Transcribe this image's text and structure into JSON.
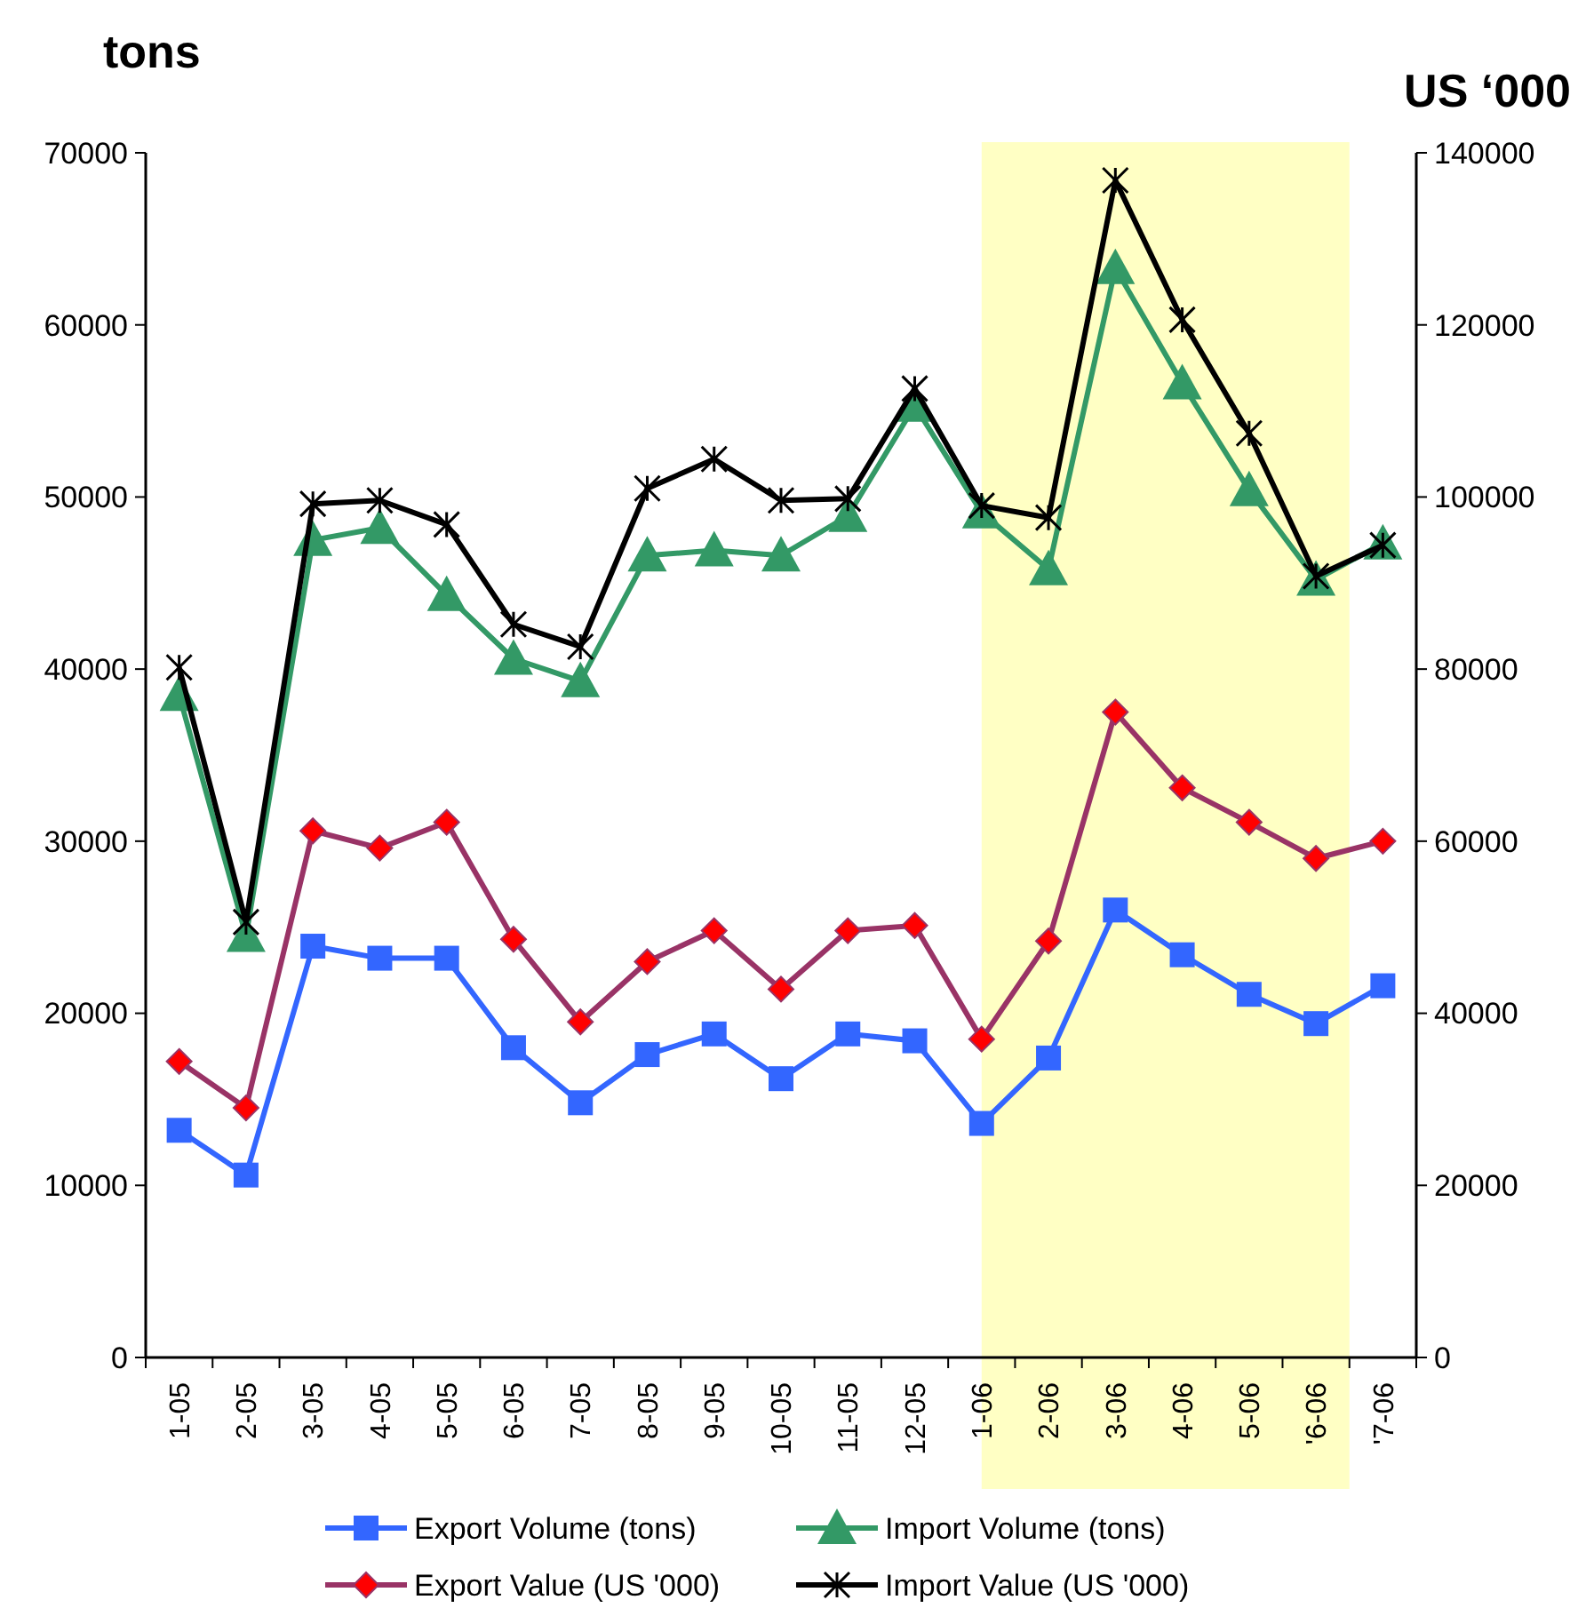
{
  "chart_data": {
    "type": "line",
    "ylabel": "tons",
    "y2label": "US ‘000",
    "categories": [
      "1-05",
      "2-05",
      "3-05",
      "4-05",
      "5-05",
      "6-05",
      "7-05",
      "8-05",
      "9-05",
      "10-05",
      "11-05",
      "12-05",
      "1-06",
      "2-06",
      "3-06",
      "4-06",
      "5-06",
      "'6-06",
      "'7-06"
    ],
    "series": [
      {
        "name": "Export Volume (tons)",
        "color": "#3366ff",
        "marker": "square",
        "values": [
          13200,
          10600,
          23900,
          23200,
          23200,
          18000,
          14800,
          17600,
          18800,
          16200,
          18800,
          18400,
          13600,
          17400,
          26000,
          23400,
          21100,
          19400,
          21600
        ]
      },
      {
        "name": "Import Volume (tons)",
        "color": "#339966",
        "marker": "triangle",
        "values": [
          38500,
          24500,
          47500,
          48200,
          44300,
          40600,
          39300,
          46600,
          46900,
          46600,
          48900,
          55300,
          49100,
          45800,
          63300,
          56600,
          50400,
          45200,
          47300
        ]
      },
      {
        "name": "Export Value (US '000)",
        "color": "#993366",
        "marker": "diamond",
        "axis": "y2",
        "values": [
          34400,
          29000,
          61200,
          59200,
          62200,
          48600,
          39000,
          46000,
          49600,
          42800,
          49600,
          50200,
          37000,
          48400,
          75000,
          66200,
          62200,
          58000,
          60000
        ]
      },
      {
        "name": "Import Value (US '000)",
        "color": "#000000",
        "marker": "cross",
        "axis": "y2",
        "values": [
          80200,
          50600,
          99200,
          99600,
          96800,
          85200,
          82600,
          101000,
          104400,
          99600,
          99800,
          112600,
          99000,
          97600,
          136800,
          120600,
          107400,
          90800,
          94400
        ]
      }
    ],
    "ylim": [
      0,
      70000
    ],
    "yticks": [
      0,
      10000,
      20000,
      30000,
      40000,
      50000,
      60000,
      70000
    ],
    "y2lim": [
      0,
      140000
    ],
    "y2ticks": [
      0,
      20000,
      40000,
      60000,
      80000,
      100000,
      120000,
      140000
    ],
    "bands": [
      {
        "axis": "x",
        "from": "1-06",
        "to": "'6-06",
        "color": "#ffffc4"
      }
    ],
    "legend": "bottom",
    "grid": false
  }
}
